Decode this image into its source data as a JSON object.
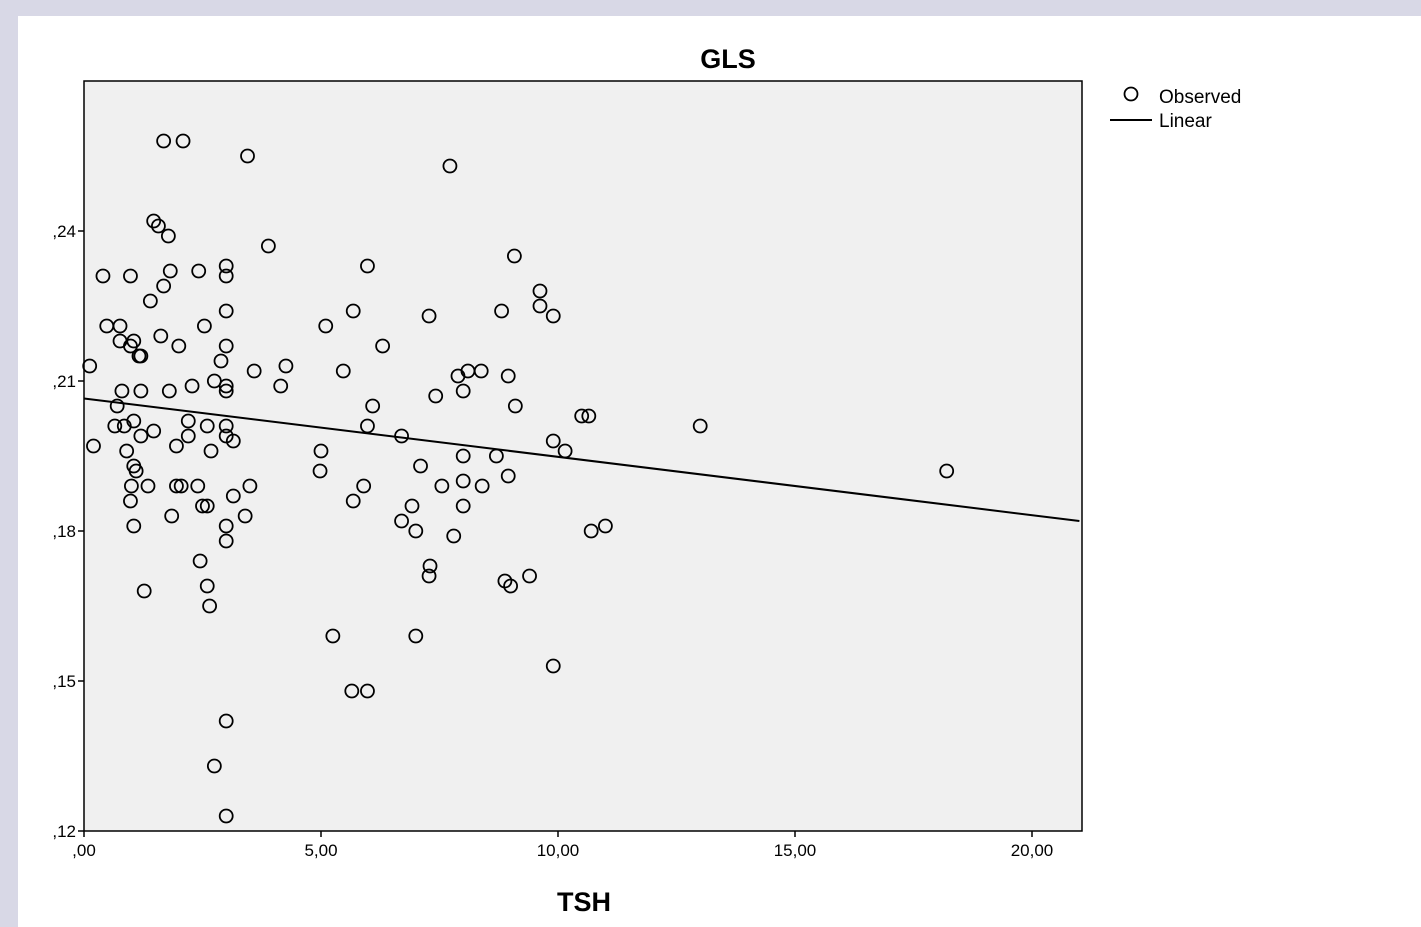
{
  "colors": {
    "page_background": "#d8d8e6",
    "panel_background": "#ffffff",
    "plot_background": "#f0f0f0",
    "ink": "#000000"
  },
  "chart_data": {
    "type": "scatter",
    "title": "GLS",
    "xlabel": "TSH",
    "ylabel": "",
    "xlim": [
      0,
      21
    ],
    "ylim": [
      0.12,
      0.27
    ],
    "xticks": [
      {
        "value": 0,
        "label": ",00"
      },
      {
        "value": 5,
        "label": "5,00"
      },
      {
        "value": 10,
        "label": "10,00"
      },
      {
        "value": 15,
        "label": "15,00"
      },
      {
        "value": 20,
        "label": "20,00"
      }
    ],
    "yticks": [
      {
        "value": 0.12,
        "label": ",12"
      },
      {
        "value": 0.15,
        "label": ",15"
      },
      {
        "value": 0.18,
        "label": ",18"
      },
      {
        "value": 0.21,
        "label": ",21"
      },
      {
        "value": 0.24,
        "label": ",24"
      }
    ],
    "grid": false,
    "legend": {
      "position": "right",
      "entries": [
        {
          "label": "Observed",
          "marker": "open-circle"
        },
        {
          "label": "Linear",
          "marker": "line"
        }
      ]
    },
    "series": [
      {
        "name": "Observed",
        "marker": "open-circle",
        "points": [
          [
            1.68,
            0.258
          ],
          [
            2.09,
            0.258
          ],
          [
            3.45,
            0.255
          ],
          [
            7.72,
            0.253
          ],
          [
            1.47,
            0.242
          ],
          [
            1.57,
            0.241
          ],
          [
            1.78,
            0.239
          ],
          [
            3.89,
            0.237
          ],
          [
            9.08,
            0.235
          ],
          [
            3.0,
            0.233
          ],
          [
            5.98,
            0.233
          ],
          [
            0.4,
            0.231
          ],
          [
            0.98,
            0.231
          ],
          [
            1.82,
            0.232
          ],
          [
            2.42,
            0.232
          ],
          [
            3.0,
            0.231
          ],
          [
            1.68,
            0.229
          ],
          [
            9.62,
            0.228
          ],
          [
            1.4,
            0.226
          ],
          [
            9.62,
            0.225
          ],
          [
            3.0,
            0.224
          ],
          [
            5.68,
            0.224
          ],
          [
            8.81,
            0.224
          ],
          [
            9.9,
            0.223
          ],
          [
            7.28,
            0.223
          ],
          [
            0.48,
            0.221
          ],
          [
            0.76,
            0.221
          ],
          [
            2.54,
            0.221
          ],
          [
            5.1,
            0.221
          ],
          [
            0.76,
            0.218
          ],
          [
            1.05,
            0.218
          ],
          [
            1.62,
            0.219
          ],
          [
            0.98,
            0.217
          ],
          [
            2.0,
            0.217
          ],
          [
            3.0,
            0.217
          ],
          [
            6.3,
            0.217
          ],
          [
            1.2,
            0.215
          ],
          [
            1.16,
            0.215
          ],
          [
            2.89,
            0.214
          ],
          [
            0.12,
            0.213
          ],
          [
            3.59,
            0.212
          ],
          [
            4.26,
            0.213
          ],
          [
            5.47,
            0.212
          ],
          [
            7.89,
            0.211
          ],
          [
            8.1,
            0.212
          ],
          [
            8.38,
            0.212
          ],
          [
            8.95,
            0.211
          ],
          [
            2.75,
            0.21
          ],
          [
            2.28,
            0.209
          ],
          [
            3.0,
            0.209
          ],
          [
            4.15,
            0.209
          ],
          [
            0.8,
            0.208
          ],
          [
            1.2,
            0.208
          ],
          [
            1.8,
            0.208
          ],
          [
            3.0,
            0.208
          ],
          [
            7.42,
            0.207
          ],
          [
            8.0,
            0.208
          ],
          [
            0.7,
            0.205
          ],
          [
            6.09,
            0.205
          ],
          [
            9.1,
            0.205
          ],
          [
            1.05,
            0.202
          ],
          [
            2.2,
            0.202
          ],
          [
            10.5,
            0.203
          ],
          [
            10.65,
            0.203
          ],
          [
            0.65,
            0.201
          ],
          [
            0.85,
            0.201
          ],
          [
            2.6,
            0.201
          ],
          [
            3.0,
            0.201
          ],
          [
            5.98,
            0.201
          ],
          [
            13.0,
            0.201
          ],
          [
            1.2,
            0.199
          ],
          [
            1.47,
            0.2
          ],
          [
            2.2,
            0.199
          ],
          [
            3.0,
            0.199
          ],
          [
            3.15,
            0.198
          ],
          [
            6.7,
            0.199
          ],
          [
            9.9,
            0.198
          ],
          [
            0.2,
            0.197
          ],
          [
            1.95,
            0.197
          ],
          [
            0.9,
            0.196
          ],
          [
            2.68,
            0.196
          ],
          [
            5.0,
            0.196
          ],
          [
            10.15,
            0.196
          ],
          [
            8.0,
            0.195
          ],
          [
            8.7,
            0.195
          ],
          [
            1.05,
            0.193
          ],
          [
            1.1,
            0.192
          ],
          [
            4.98,
            0.192
          ],
          [
            7.1,
            0.193
          ],
          [
            8.95,
            0.191
          ],
          [
            18.2,
            0.192
          ],
          [
            1.0,
            0.189
          ],
          [
            1.35,
            0.189
          ],
          [
            1.95,
            0.189
          ],
          [
            2.05,
            0.189
          ],
          [
            2.4,
            0.189
          ],
          [
            3.5,
            0.189
          ],
          [
            5.9,
            0.189
          ],
          [
            7.55,
            0.189
          ],
          [
            8.0,
            0.19
          ],
          [
            8.4,
            0.189
          ],
          [
            0.98,
            0.186
          ],
          [
            3.15,
            0.187
          ],
          [
            5.68,
            0.186
          ],
          [
            2.5,
            0.185
          ],
          [
            2.6,
            0.185
          ],
          [
            6.92,
            0.185
          ],
          [
            8.0,
            0.185
          ],
          [
            1.85,
            0.183
          ],
          [
            3.4,
            0.183
          ],
          [
            6.7,
            0.182
          ],
          [
            1.05,
            0.181
          ],
          [
            3.0,
            0.181
          ],
          [
            7.0,
            0.18
          ],
          [
            7.8,
            0.179
          ],
          [
            10.7,
            0.18
          ],
          [
            11.0,
            0.181
          ],
          [
            3.0,
            0.178
          ],
          [
            2.45,
            0.174
          ],
          [
            7.3,
            0.173
          ],
          [
            7.28,
            0.171
          ],
          [
            8.88,
            0.17
          ],
          [
            9.0,
            0.169
          ],
          [
            9.4,
            0.171
          ],
          [
            2.6,
            0.169
          ],
          [
            1.27,
            0.168
          ],
          [
            2.65,
            0.165
          ],
          [
            5.25,
            0.159
          ],
          [
            7.0,
            0.159
          ],
          [
            9.9,
            0.153
          ],
          [
            5.65,
            0.148
          ],
          [
            5.98,
            0.148
          ],
          [
            3.0,
            0.142
          ],
          [
            2.75,
            0.133
          ],
          [
            3.0,
            0.123
          ]
        ]
      },
      {
        "name": "Linear",
        "marker": "line",
        "points": [
          [
            0,
            0.2065
          ],
          [
            21,
            0.182
          ]
        ]
      }
    ]
  }
}
